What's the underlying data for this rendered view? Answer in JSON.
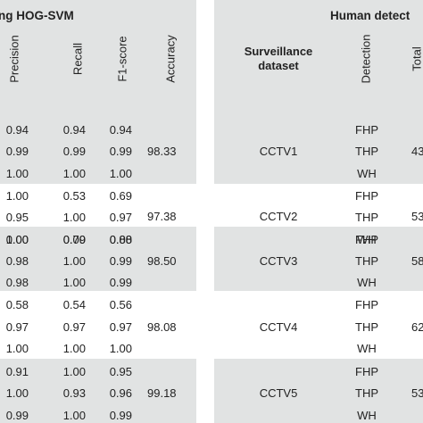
{
  "left_table": {
    "title": "ng HOG-SVM",
    "columns": [
      "Precision",
      "Recall",
      "F1-score",
      "Accuracy"
    ],
    "groups": [
      {
        "accuracy": "98.33",
        "rows": [
          [
            "0.94",
            "0.94",
            "0.94"
          ],
          [
            "0.99",
            "0.99",
            "0.99"
          ],
          [
            "1.00",
            "1.00",
            "1.00"
          ]
        ]
      },
      {
        "accuracy": "97.38",
        "rows": [
          [
            "1.00",
            "0.53",
            "0.69"
          ],
          [
            "0.95",
            "1.00",
            "0.97"
          ],
          [
            "0.00",
            "0.00",
            "0.00"
          ]
        ]
      },
      {
        "accuracy": "98.50",
        "rows": [
          [
            "1.00",
            "0.79",
            "0.88"
          ],
          [
            "0.98",
            "1.00",
            "0.99"
          ],
          [
            "0.98",
            "1.00",
            "0.99"
          ]
        ]
      },
      {
        "accuracy": "98.08",
        "rows": [
          [
            "0.58",
            "0.54",
            "0.56"
          ],
          [
            "0.97",
            "0.97",
            "0.97"
          ],
          [
            "1.00",
            "1.00",
            "1.00"
          ]
        ]
      },
      {
        "accuracy": "99.18",
        "rows": [
          [
            "0.91",
            "1.00",
            "0.95"
          ],
          [
            "1.00",
            "0.93",
            "0.96"
          ],
          [
            "0.99",
            "1.00",
            "0.99"
          ]
        ]
      }
    ]
  },
  "right_table": {
    "title": "Human detect",
    "dataset_header": "Surveillance\ndataset",
    "detection_header": "Detection",
    "total_header": "Total",
    "groups": [
      {
        "name": "CCTV1",
        "detections": [
          "FHP",
          "THP",
          "WH"
        ],
        "total": "43"
      },
      {
        "name": "CCTV2",
        "detections": [
          "FHP",
          "THP",
          "WH"
        ],
        "total": "53"
      },
      {
        "name": "CCTV3",
        "detections": [
          "FHP",
          "THP",
          "WH"
        ],
        "total": "58"
      },
      {
        "name": "CCTV4",
        "detections": [
          "FHP",
          "THP",
          "WH"
        ],
        "total": "62"
      },
      {
        "name": "CCTV5",
        "detections": [
          "FHP",
          "THP",
          "WH"
        ],
        "total": "53"
      }
    ]
  }
}
